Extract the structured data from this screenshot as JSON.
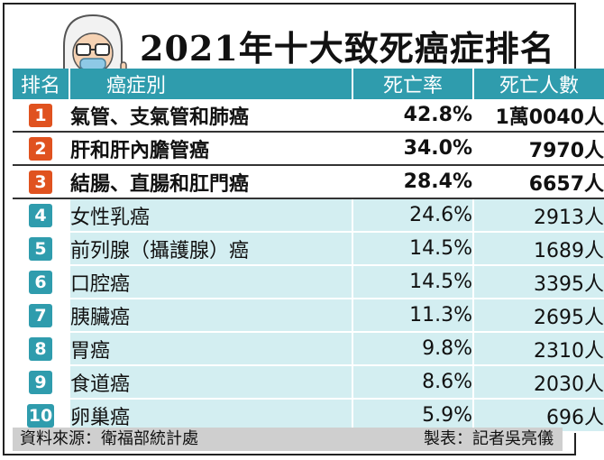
{
  "title": "2021年十大致死癌症排名",
  "headers": {
    "rank": "排名",
    "name": "癌症別",
    "rate": "死亡率",
    "deaths": "死亡人數"
  },
  "colors": {
    "header": "#2f9cad",
    "row_tint": "#d3eef1",
    "top_badge": "#e0521f",
    "badge": "#2f9cad"
  },
  "rows": [
    {
      "rank": "1",
      "name": "氣管、支氣管和肺癌",
      "rate": "42.8%",
      "deaths": "1萬0040人"
    },
    {
      "rank": "2",
      "name": "肝和肝內膽管癌",
      "rate": "34.0%",
      "deaths": "7970人"
    },
    {
      "rank": "3",
      "name": "結腸、直腸和肛門癌",
      "rate": "28.4%",
      "deaths": "6657人"
    },
    {
      "rank": "4",
      "name": "女性乳癌",
      "rate": "24.6%",
      "deaths": "2913人"
    },
    {
      "rank": "5",
      "name": "前列腺（攝護腺）癌",
      "rate": "14.5%",
      "deaths": "1689人"
    },
    {
      "rank": "6",
      "name": "口腔癌",
      "rate": "14.5%",
      "deaths": "3395人"
    },
    {
      "rank": "7",
      "name": "胰臟癌",
      "rate": "11.3%",
      "deaths": "2695人"
    },
    {
      "rank": "8",
      "name": "胃癌",
      "rate": "9.8%",
      "deaths": "2310人"
    },
    {
      "rank": "9",
      "name": "食道癌",
      "rate": "8.6%",
      "deaths": "2030人"
    },
    {
      "rank": "10",
      "name": "卵巢癌",
      "rate": "5.9%",
      "deaths": "696人"
    }
  ],
  "footer": {
    "source": "資料來源：衛福部統計處",
    "credit": "製表：記者吳亮儀"
  },
  "chart_data": {
    "type": "table",
    "title": "2021年十大致死癌症排名",
    "columns": [
      "排名",
      "癌症別",
      "死亡率",
      "死亡人數"
    ],
    "categories": [
      "氣管、支氣管和肺癌",
      "肝和肝內膽管癌",
      "結腸、直腸和肛門癌",
      "女性乳癌",
      "前列腺（攝護腺）癌",
      "口腔癌",
      "胰臟癌",
      "胃癌",
      "食道癌",
      "卵巢癌"
    ],
    "series": [
      {
        "name": "死亡率",
        "values": [
          42.8,
          34.0,
          28.4,
          24.6,
          14.5,
          14.5,
          11.3,
          9.8,
          8.6,
          5.9
        ]
      },
      {
        "name": "死亡人數",
        "values": [
          10040,
          7970,
          6657,
          2913,
          1689,
          3395,
          2695,
          2310,
          2030,
          696
        ]
      }
    ]
  }
}
